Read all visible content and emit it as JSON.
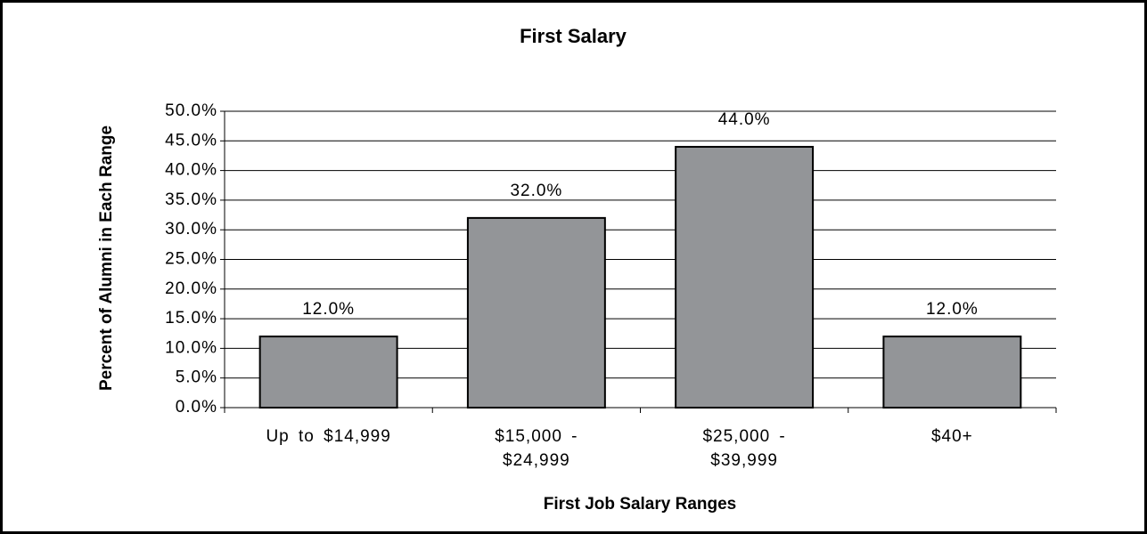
{
  "chart_data": {
    "type": "bar",
    "title": "First Salary",
    "x_label": "First Job Salary Ranges",
    "y_label": "Percent of Alumni in Each Range",
    "categories": [
      "Up to $14,999",
      "$15,000 - $24,999",
      "$25,000 - $39,999",
      "$40+"
    ],
    "values": [
      12,
      32,
      44,
      12
    ],
    "value_labels": [
      "12.0%",
      "32.0%",
      "44.0%",
      "12.0%"
    ],
    "color": "#939598",
    "ylim": [
      0,
      50
    ],
    "yticks": [
      {
        "value": 0,
        "label": "0.0%"
      },
      {
        "value": 5,
        "label": "5.0%"
      },
      {
        "value": 10,
        "label": "10.0%"
      },
      {
        "value": 15,
        "label": "15.0%"
      },
      {
        "value": 20,
        "label": "20.0%"
      },
      {
        "value": 25,
        "label": "25.0%"
      },
      {
        "value": 30,
        "label": "30.0%"
      },
      {
        "value": 35,
        "label": "35.0%"
      },
      {
        "value": 40,
        "label": "40.0%"
      },
      {
        "value": 45,
        "label": "45.0%"
      },
      {
        "value": 50,
        "label": "50.0%"
      }
    ],
    "grid": true
  }
}
